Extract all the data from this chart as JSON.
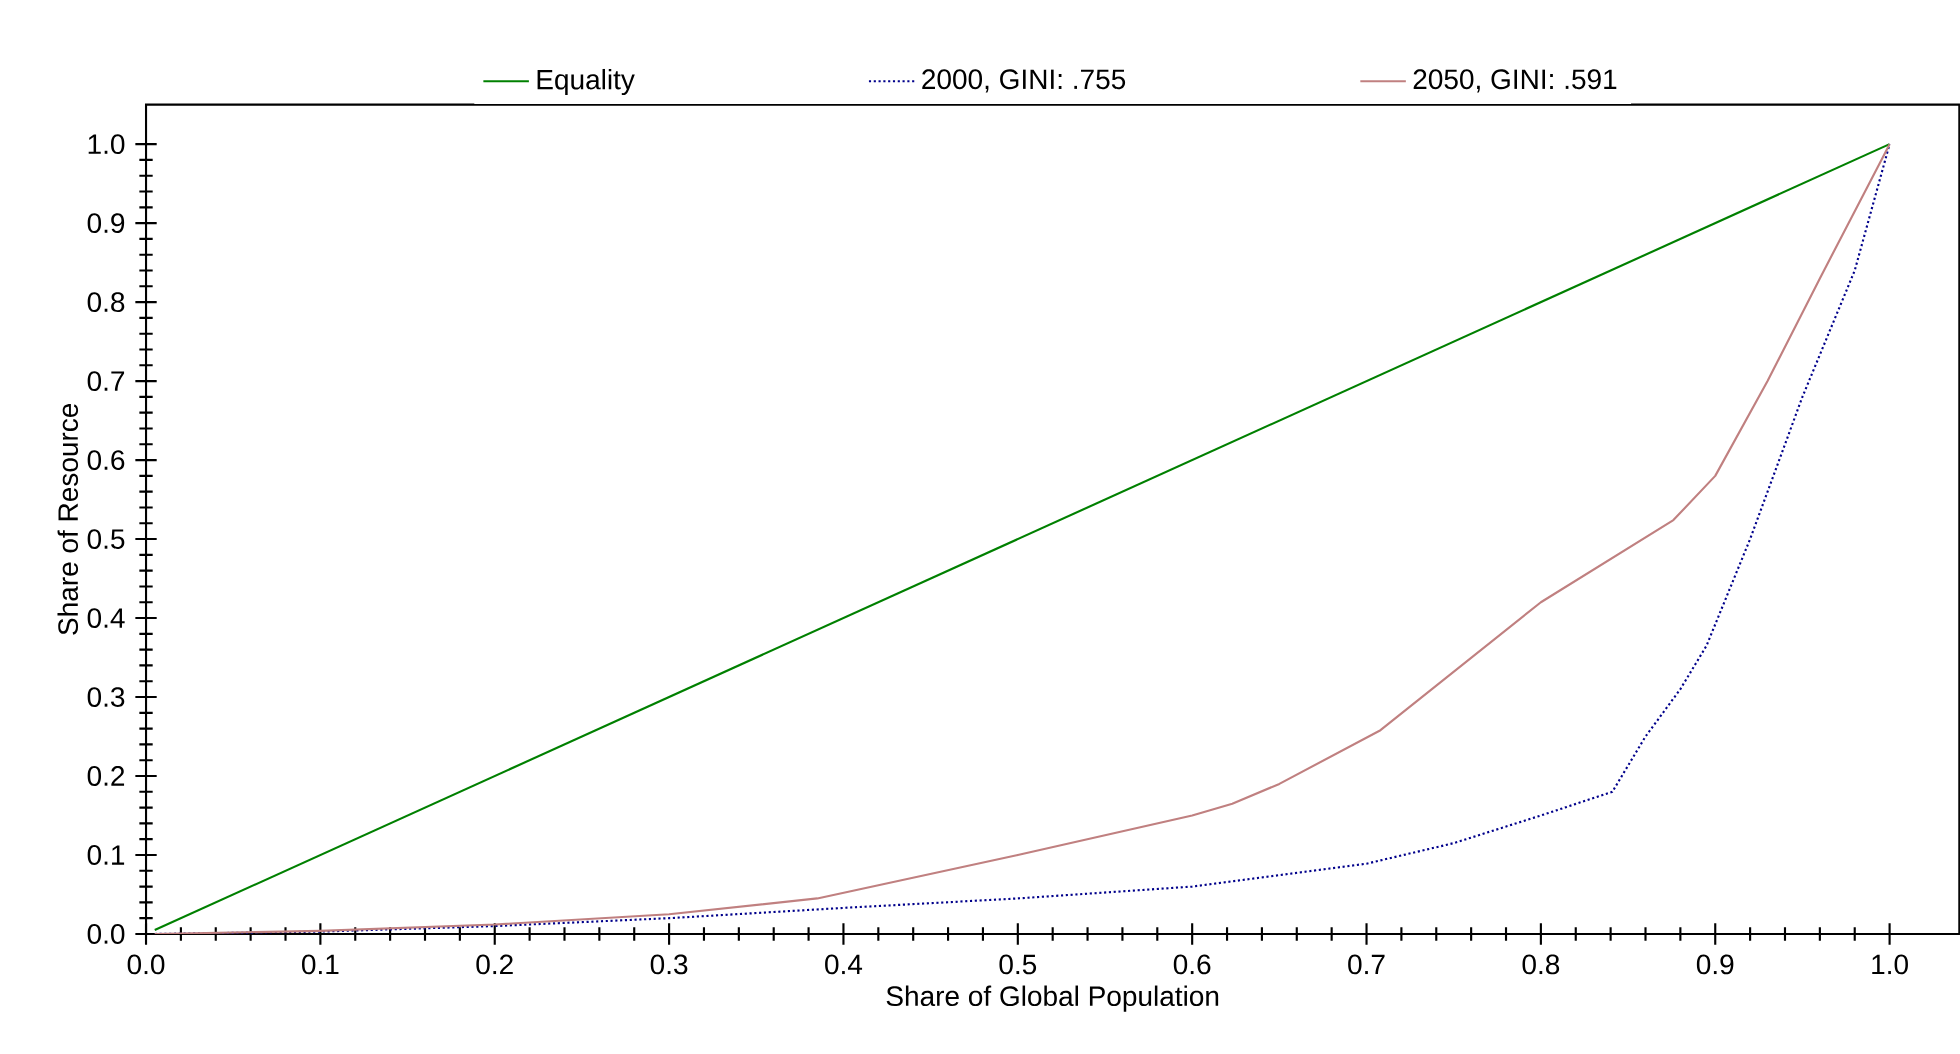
{
  "chart_data": {
    "type": "line",
    "xlabel": "Share of Global Population",
    "ylabel": "Share of Resource",
    "xlim": [
      0,
      1.04
    ],
    "ylim": [
      0,
      1.05
    ],
    "xticks": [
      {
        "value": 0,
        "label": "0.0"
      },
      0.1,
      0.2,
      0.3,
      0.4,
      0.5,
      0.6,
      0.7,
      0.8,
      0.9,
      {
        "value": 1,
        "label": "1.0"
      }
    ],
    "yticks": [
      {
        "value": 0,
        "label": "0.0"
      },
      0.1,
      0.2,
      0.3,
      0.4,
      0.5,
      0.6,
      0.7,
      0.8,
      0.9,
      {
        "value": 1,
        "label": "1.0"
      }
    ],
    "legend": "top",
    "grid": false,
    "series": [
      {
        "name": "Equality",
        "color": "#008000",
        "line_style": "solid",
        "x": [
          0.005,
          1.0
        ],
        "values": [
          0.005,
          1.0
        ]
      },
      {
        "name": "2000, GINI: .755",
        "color": "#00008b",
        "line_style": "dotted",
        "x": [
          0.005,
          0.1,
          0.2,
          0.3,
          0.4,
          0.5,
          0.6,
          0.7,
          0.75,
          0.8,
          0.841,
          0.86,
          0.88,
          0.895,
          0.92,
          0.95,
          0.98,
          1.0
        ],
        "values": [
          0,
          0.003,
          0.01,
          0.02,
          0.033,
          0.045,
          0.06,
          0.089,
          0.115,
          0.15,
          0.18,
          0.25,
          0.31,
          0.365,
          0.5,
          0.68,
          0.84,
          1.0
        ]
      },
      {
        "name": "2050, GINI: .591",
        "color": "#c08080",
        "line_style": "solid",
        "x": [
          0.005,
          0.1,
          0.2,
          0.3,
          0.385,
          0.5,
          0.6,
          0.623,
          0.65,
          0.708,
          0.8,
          0.876,
          0.9,
          0.93,
          0.96,
          1.0
        ],
        "values": [
          0,
          0.004,
          0.012,
          0.025,
          0.045,
          0.1,
          0.15,
          0.165,
          0.19,
          0.258,
          0.42,
          0.524,
          0.58,
          0.7,
          0.83,
          1.0
        ]
      }
    ]
  }
}
